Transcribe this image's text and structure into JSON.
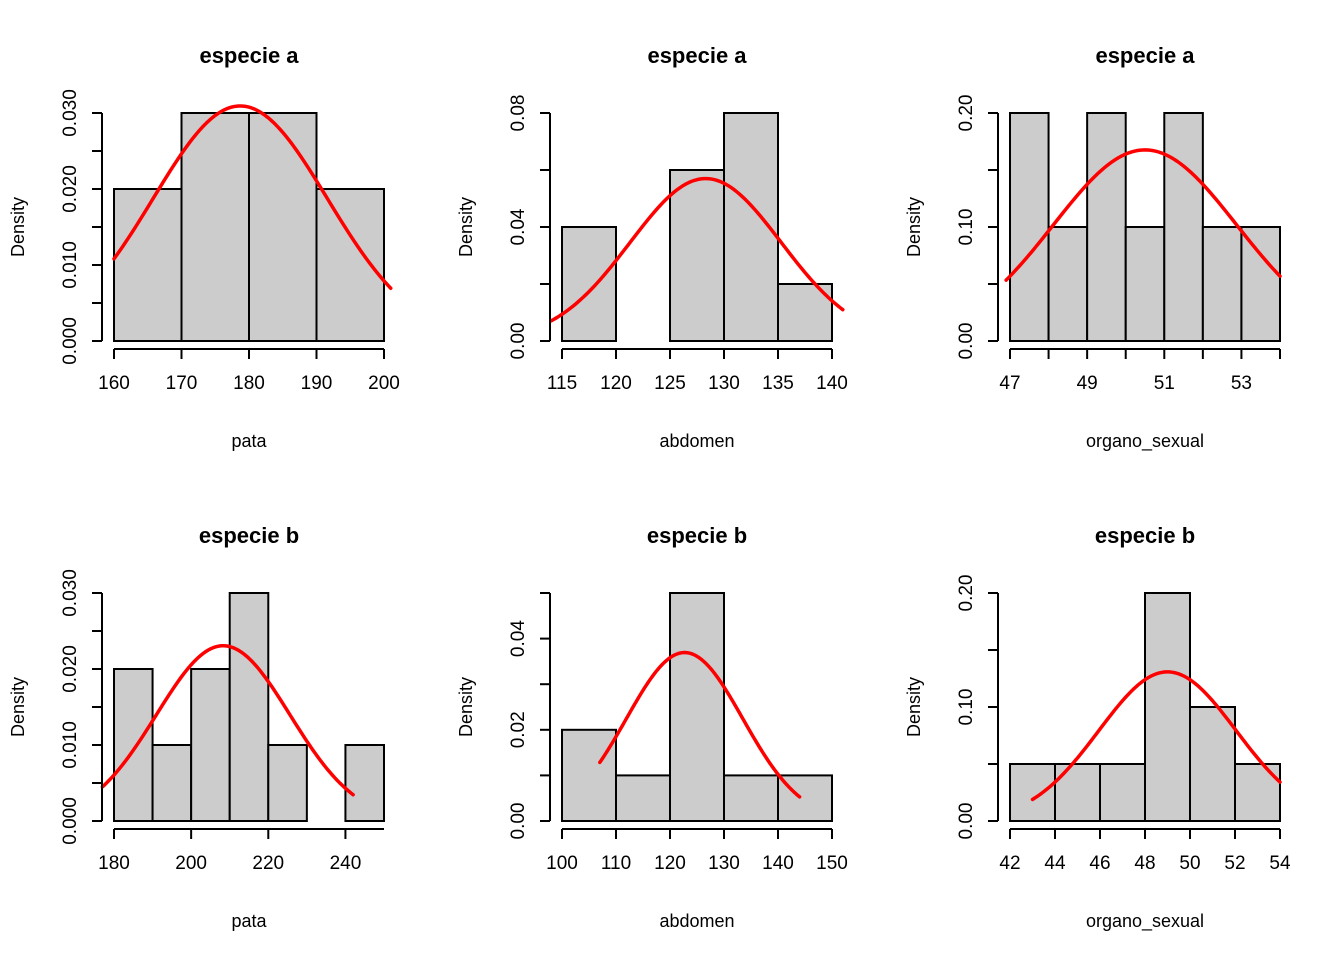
{
  "colors": {
    "bar_fill": "#cccccc",
    "bar_stroke": "#000000",
    "curve": "#ff0000"
  },
  "chart_data": [
    {
      "type": "bar",
      "title": "especie a",
      "xlabel": "pata",
      "ylabel": "Density",
      "bins": [
        {
          "x0": 160,
          "x1": 170,
          "density": 0.02
        },
        {
          "x0": 170,
          "x1": 180,
          "density": 0.03
        },
        {
          "x0": 180,
          "x1": 190,
          "density": 0.03
        },
        {
          "x0": 190,
          "x1": 200,
          "density": 0.02
        }
      ],
      "xlim": [
        160,
        200
      ],
      "ylim": [
        0,
        0.03
      ],
      "xticks": [
        "160",
        "170",
        "180",
        "190",
        "200"
      ],
      "yticks": [
        "0.000",
        "0.010",
        "0.020",
        "0.030"
      ],
      "ytick_minor": [
        0.005,
        0.015,
        0.025
      ],
      "normal_curve": {
        "mean": 178.7,
        "sd": 12.9,
        "x_from": 160,
        "x_to": 201
      }
    },
    {
      "type": "bar",
      "title": "especie a",
      "xlabel": "abdomen",
      "ylabel": "Density",
      "bins": [
        {
          "x0": 115,
          "x1": 120,
          "density": 0.04
        },
        {
          "x0": 120,
          "x1": 125,
          "density": 0.0
        },
        {
          "x0": 125,
          "x1": 130,
          "density": 0.06
        },
        {
          "x0": 130,
          "x1": 135,
          "density": 0.08
        },
        {
          "x0": 135,
          "x1": 140,
          "density": 0.02
        }
      ],
      "xlim": [
        115,
        140
      ],
      "ylim": [
        0,
        0.08
      ],
      "xticks": [
        "115",
        "120",
        "125",
        "130",
        "135",
        "140"
      ],
      "yticks": [
        "0.00",
        "0.04",
        "0.08"
      ],
      "ytick_minor": [
        0.02,
        0.06
      ],
      "normal_curve": {
        "mean": 128.3,
        "sd": 7.0,
        "x_from": 114,
        "x_to": 141
      }
    },
    {
      "type": "bar",
      "title": "especie a",
      "xlabel": "organo_sexual",
      "ylabel": "Density",
      "bins": [
        {
          "x0": 47,
          "x1": 48,
          "density": 0.2
        },
        {
          "x0": 48,
          "x1": 49,
          "density": 0.1
        },
        {
          "x0": 49,
          "x1": 50,
          "density": 0.2
        },
        {
          "x0": 50,
          "x1": 51,
          "density": 0.1
        },
        {
          "x0": 51,
          "x1": 52,
          "density": 0.2
        },
        {
          "x0": 52,
          "x1": 53,
          "density": 0.1
        },
        {
          "x0": 53,
          "x1": 54,
          "density": 0.1
        }
      ],
      "xlim": [
        47,
        54
      ],
      "ylim": [
        0,
        0.2
      ],
      "xticks": [
        "47",
        "49",
        "51",
        "53"
      ],
      "xtick_minor": [
        48,
        50,
        52,
        54
      ],
      "yticks": [
        "0.00",
        "0.10",
        "0.20"
      ],
      "ytick_minor": [
        0.05,
        0.15
      ],
      "normal_curve": {
        "mean": 50.5,
        "sd": 2.38,
        "x_from": 46.9,
        "x_to": 54
      }
    },
    {
      "type": "bar",
      "title": "especie b",
      "xlabel": "pata",
      "ylabel": "Density",
      "bins": [
        {
          "x0": 180,
          "x1": 190,
          "density": 0.02
        },
        {
          "x0": 190,
          "x1": 200,
          "density": 0.01
        },
        {
          "x0": 200,
          "x1": 210,
          "density": 0.02
        },
        {
          "x0": 210,
          "x1": 220,
          "density": 0.03
        },
        {
          "x0": 220,
          "x1": 230,
          "density": 0.01
        },
        {
          "x0": 230,
          "x1": 240,
          "density": 0.0
        },
        {
          "x0": 240,
          "x1": 250,
          "density": 0.01
        }
      ],
      "xlim": [
        180,
        250
      ],
      "ylim": [
        0,
        0.03
      ],
      "xticks": [
        "180",
        "200",
        "220",
        "240"
      ],
      "yticks": [
        "0.000",
        "0.010",
        "0.020",
        "0.030"
      ],
      "ytick_minor": [
        0.005,
        0.015,
        0.025
      ],
      "normal_curve": {
        "mean": 208.3,
        "sd": 17.3,
        "x_from": 177,
        "x_to": 242
      }
    },
    {
      "type": "bar",
      "title": "especie b",
      "xlabel": "abdomen",
      "ylabel": "Density",
      "bins": [
        {
          "x0": 100,
          "x1": 110,
          "density": 0.02
        },
        {
          "x0": 110,
          "x1": 120,
          "density": 0.01
        },
        {
          "x0": 120,
          "x1": 130,
          "density": 0.05
        },
        {
          "x0": 130,
          "x1": 140,
          "density": 0.01
        },
        {
          "x0": 140,
          "x1": 150,
          "density": 0.01
        }
      ],
      "xlim": [
        100,
        150
      ],
      "ylim": [
        0,
        0.05
      ],
      "xticks": [
        "100",
        "110",
        "120",
        "130",
        "140",
        "150"
      ],
      "yticks": [
        "0.00",
        "0.02",
        "0.04"
      ],
      "ytick_minor": [
        0.01,
        0.03,
        0.05
      ],
      "normal_curve": {
        "mean": 122.7,
        "sd": 10.8,
        "x_from": 107,
        "x_to": 144
      }
    },
    {
      "type": "bar",
      "title": "especie b",
      "xlabel": "organo_sexual",
      "ylabel": "Density",
      "bins": [
        {
          "x0": 42,
          "x1": 44,
          "density": 0.05
        },
        {
          "x0": 44,
          "x1": 46,
          "density": 0.05
        },
        {
          "x0": 46,
          "x1": 48,
          "density": 0.05
        },
        {
          "x0": 48,
          "x1": 50,
          "density": 0.2
        },
        {
          "x0": 50,
          "x1": 52,
          "density": 0.1
        },
        {
          "x0": 52,
          "x1": 54,
          "density": 0.05
        }
      ],
      "xlim": [
        42,
        54
      ],
      "ylim": [
        0,
        0.2
      ],
      "xticks": [
        "42",
        "44",
        "46",
        "48",
        "50",
        "52",
        "54"
      ],
      "yticks": [
        "0.00",
        "0.10",
        "0.20"
      ],
      "ytick_minor": [
        0.05,
        0.15
      ],
      "normal_curve": {
        "mean": 49.0,
        "sd": 3.05,
        "x_from": 43,
        "x_to": 54
      }
    }
  ]
}
